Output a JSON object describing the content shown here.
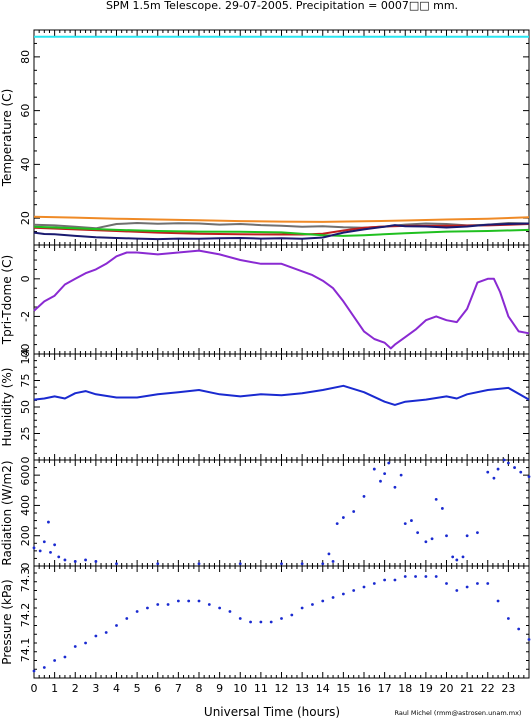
{
  "page": {
    "title": "SPM 1.5m Telescope. 29-07-2005. Precipitation = 0007□□ mm.",
    "credit": "Raul Michel (rmm@astrosen.unam.mx)",
    "xlabel": "Universal Time (hours)"
  },
  "colors": {
    "cyan": "#28e6f0",
    "orange": "#ef8a26",
    "gray": "#707070",
    "red": "#c02020",
    "green": "#20c020",
    "navy": "#1a1a70",
    "purple": "#8a2ad2",
    "blue": "#1a2ad0"
  },
  "chart_data": [
    {
      "type": "line",
      "ylabel": "Temperature (C)",
      "xlim": [
        0,
        24
      ],
      "ylim": [
        10,
        90
      ],
      "xticks": [
        "0",
        "1",
        "2",
        "3",
        "4",
        "5",
        "6",
        "7",
        "8",
        "9",
        "10",
        "11",
        "12",
        "13",
        "14",
        "15",
        "16",
        "17",
        "18",
        "19",
        "20",
        "21",
        "22",
        "23"
      ],
      "yticks": [
        "20",
        "40",
        "60",
        "80"
      ],
      "series": [
        {
          "color_key": "cyan",
          "x": [
            0,
            24
          ],
          "y": [
            87.5,
            87.5
          ]
        },
        {
          "color_key": "orange",
          "x": [
            0,
            2,
            4,
            6,
            8,
            10,
            12,
            14,
            16,
            18,
            20,
            22,
            24
          ],
          "y": [
            20.5,
            20.2,
            19.8,
            19.5,
            19.2,
            18.9,
            18.7,
            18.6,
            18.8,
            19.1,
            19.5,
            19.8,
            20.3
          ]
        },
        {
          "color_key": "gray",
          "x": [
            0,
            1,
            2,
            3,
            4,
            5,
            6,
            7,
            8,
            9,
            10,
            11,
            12,
            13,
            14,
            15,
            16,
            17,
            18,
            19,
            20,
            21,
            22,
            23,
            24
          ],
          "y": [
            17.5,
            17.3,
            16.8,
            16.2,
            17.8,
            18.2,
            17.9,
            18.1,
            18.0,
            17.6,
            17.8,
            17.4,
            17.2,
            16.8,
            17.0,
            16.6,
            16.4,
            16.9,
            17.6,
            18.0,
            17.8,
            17.3,
            17.5,
            18.2,
            18.0
          ]
        },
        {
          "color_key": "red",
          "x": [
            0,
            2,
            4,
            6,
            8,
            10,
            12,
            13,
            14,
            15,
            16,
            17,
            18,
            20,
            22,
            23,
            24
          ],
          "y": [
            16.4,
            15.8,
            15.2,
            14.6,
            14.2,
            14.0,
            13.9,
            13.9,
            14.2,
            15.4,
            16.4,
            16.9,
            17.1,
            17.2,
            17.3,
            17.5,
            17.8
          ]
        },
        {
          "color_key": "green",
          "x": [
            0,
            2,
            4,
            6,
            8,
            10,
            12,
            14,
            15,
            16,
            18,
            20,
            22,
            24
          ],
          "y": [
            16.8,
            16.2,
            15.6,
            15.2,
            15.0,
            14.9,
            14.7,
            13.6,
            13.4,
            13.6,
            14.4,
            15.0,
            15.2,
            15.6
          ]
        },
        {
          "color_key": "navy",
          "x": [
            0,
            0.5,
            1,
            2,
            3,
            4,
            5,
            6,
            7,
            8,
            9,
            10,
            11,
            12,
            13,
            14,
            15,
            16,
            17,
            17.5,
            18,
            19,
            20,
            21,
            22,
            23,
            24
          ],
          "y": [
            14.6,
            14.1,
            14.0,
            13.4,
            12.9,
            12.6,
            12.4,
            12.2,
            12.4,
            12.3,
            12.5,
            12.6,
            12.4,
            12.5,
            12.3,
            12.8,
            14.6,
            15.8,
            16.8,
            17.4,
            17.0,
            16.9,
            16.5,
            16.9,
            17.6,
            17.8,
            18.0
          ]
        }
      ]
    },
    {
      "type": "line",
      "ylabel": "Tpri-Tdome (C)",
      "xlim": [
        0,
        24
      ],
      "ylim": [
        -4,
        1.8
      ],
      "yticks": [
        "0",
        "-2",
        "-4"
      ],
      "series": [
        {
          "color_key": "purple",
          "x": [
            0,
            0.5,
            1,
            1.5,
            2,
            2.5,
            3,
            3.5,
            4,
            4.5,
            5,
            6,
            7,
            8,
            8.5,
            9,
            10,
            11,
            12,
            12.5,
            13,
            13.5,
            14,
            14.5,
            15,
            15.5,
            16,
            16.5,
            17,
            17.3,
            17.5,
            18,
            18.5,
            19,
            19.5,
            20,
            20.5,
            21,
            21.5,
            22,
            22.3,
            22.6,
            23,
            23.5,
            24
          ],
          "y": [
            -1.7,
            -1.2,
            -0.9,
            -0.3,
            0.0,
            0.3,
            0.5,
            0.8,
            1.2,
            1.4,
            1.4,
            1.3,
            1.4,
            1.5,
            1.4,
            1.3,
            1.0,
            0.8,
            0.8,
            0.6,
            0.4,
            0.2,
            -0.1,
            -0.5,
            -1.2,
            -2.0,
            -2.8,
            -3.2,
            -3.4,
            -3.7,
            -3.5,
            -3.1,
            -2.7,
            -2.2,
            -2.0,
            -2.2,
            -2.3,
            -1.6,
            -0.2,
            0.0,
            0.0,
            -0.7,
            -2.0,
            -2.8,
            -2.9
          ]
        }
      ]
    },
    {
      "type": "line",
      "ylabel": "Humidity (%)",
      "xlim": [
        0,
        24
      ],
      "ylim": [
        0,
        100
      ],
      "yticks": [
        "0",
        "25",
        "50",
        "75",
        "100"
      ],
      "series": [
        {
          "color_key": "blue",
          "x": [
            0,
            0.5,
            1,
            1.5,
            2,
            2.5,
            3,
            4,
            5,
            6,
            7,
            8,
            9,
            10,
            11,
            12,
            13,
            14,
            15,
            16,
            17,
            17.5,
            18,
            19,
            20,
            20.5,
            21,
            22,
            23,
            24
          ],
          "y": [
            57,
            58,
            60,
            58,
            63,
            65,
            62,
            59,
            59,
            62,
            64,
            66,
            62,
            60,
            62,
            61,
            63,
            66,
            70,
            64,
            55,
            52,
            55,
            57,
            60,
            58,
            62,
            66,
            68,
            57
          ]
        }
      ]
    },
    {
      "type": "scatter",
      "ylabel": "Radiation (W/m2)",
      "xlim": [
        0,
        24
      ],
      "ylim": [
        0,
        700
      ],
      "yticks": [
        "0",
        "200",
        "400",
        "600"
      ],
      "series": [
        {
          "color_key": "blue",
          "x": [
            0,
            0.3,
            0.5,
            0.7,
            0.8,
            1.0,
            1.2,
            1.5,
            2,
            2.5,
            3,
            4,
            6,
            8,
            10,
            12,
            13,
            14,
            14.3,
            14.5,
            14.7,
            15,
            15.5,
            16,
            16.5,
            16.8,
            17.0,
            17.2,
            17.5,
            17.8,
            18.0,
            18.3,
            18.6,
            19.0,
            19.3,
            19.5,
            19.8,
            20.0,
            20.3,
            20.5,
            20.8,
            21.0,
            21.5,
            22.0,
            22.3,
            22.5,
            22.8,
            23.0,
            23.3,
            23.6,
            24
          ],
          "y": [
            120,
            100,
            160,
            290,
            90,
            140,
            60,
            40,
            30,
            40,
            30,
            15,
            15,
            15,
            15,
            15,
            15,
            15,
            80,
            30,
            280,
            320,
            360,
            460,
            640,
            560,
            610,
            680,
            520,
            600,
            280,
            300,
            220,
            160,
            180,
            440,
            380,
            200,
            60,
            40,
            60,
            200,
            220,
            620,
            580,
            640,
            700,
            680,
            650,
            620,
            590
          ]
        }
      ]
    },
    {
      "type": "scatter",
      "ylabel": "Pressure (kPa)",
      "xlim": [
        0,
        24
      ],
      "ylim": [
        74.02,
        74.34
      ],
      "yticks": [
        "74.1",
        "74.2",
        "74.3"
      ],
      "series": [
        {
          "color_key": "blue",
          "x": [
            0,
            0.5,
            1,
            1.5,
            2,
            2.5,
            3,
            3.5,
            4,
            4.5,
            5,
            5.5,
            6,
            6.5,
            7,
            7.5,
            8,
            8.5,
            9,
            9.5,
            10,
            10.5,
            11,
            11.5,
            12,
            12.5,
            13,
            13.5,
            14,
            14.5,
            15,
            15.5,
            16,
            16.5,
            17,
            17.5,
            18,
            18.5,
            19,
            19.5,
            20,
            20.5,
            21,
            21.5,
            22,
            22.5,
            23,
            23.5,
            24
          ],
          "y": [
            74.04,
            74.05,
            74.07,
            74.08,
            74.11,
            74.12,
            74.14,
            74.15,
            74.17,
            74.19,
            74.21,
            74.22,
            74.23,
            74.23,
            74.24,
            74.24,
            74.24,
            74.23,
            74.22,
            74.21,
            74.19,
            74.18,
            74.18,
            74.18,
            74.19,
            74.2,
            74.22,
            74.23,
            74.24,
            74.25,
            74.26,
            74.27,
            74.28,
            74.29,
            74.3,
            74.3,
            74.31,
            74.31,
            74.31,
            74.31,
            74.29,
            74.27,
            74.28,
            74.29,
            74.29,
            74.24,
            74.19,
            74.16,
            74.13
          ]
        }
      ]
    }
  ]
}
